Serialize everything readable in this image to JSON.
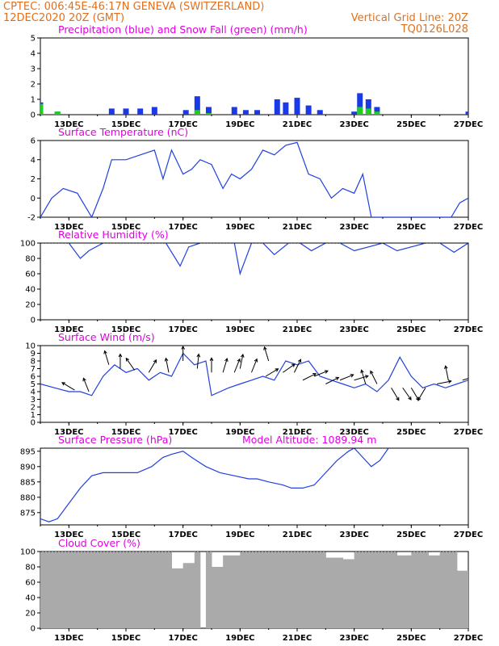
{
  "header": {
    "line1_left": "CPTEC:   006:45E-46:17N   GENEVA (SWITZERLAND)",
    "line2_left": "12DEC2020 20Z (GMT)",
    "line2_right": "Vertical Grid Line: 20Z",
    "line3_right": "TQ0126L028"
  },
  "colors": {
    "line": "#2040e0",
    "precip": "#1a3ae8",
    "snow": "#22cc22",
    "cloud": "#aaaaaa",
    "title": "#e000e0",
    "header": "#e0701f"
  },
  "x_ticks": [
    "13DEC",
    "15DEC",
    "17DEC",
    "19DEC",
    "21DEC",
    "23DEC",
    "25DEC",
    "27DEC"
  ],
  "chart_data": [
    {
      "type": "bar",
      "title": "Precipitation (blue) and Snow Fall (green) (mm/h)",
      "ylim": [
        0,
        5
      ],
      "yticks": [
        0,
        1,
        2,
        3,
        4,
        5
      ],
      "x_days": [
        12.0,
        12.6,
        13.2,
        13.5,
        14.5,
        15.0,
        15.5,
        16.0,
        16.5,
        17.1,
        17.5,
        17.9,
        18.4,
        18.8,
        19.2,
        19.6,
        20.0,
        20.3,
        20.6,
        21.0,
        21.4,
        21.8,
        22.2,
        22.6,
        23.0,
        23.2,
        23.5,
        23.8,
        24.2,
        26.0,
        26.6,
        27.0
      ],
      "series": [
        {
          "name": "Precipitation",
          "values": [
            0.8,
            0.2,
            0.0,
            0.0,
            0.4,
            0.4,
            0.4,
            0.5,
            0.0,
            0.3,
            1.2,
            0.5,
            0.0,
            0.5,
            0.3,
            0.3,
            0.0,
            1.0,
            0.8,
            1.1,
            0.6,
            0.3,
            0.0,
            0.0,
            0.2,
            1.4,
            1.0,
            0.5,
            0.0,
            0.0,
            0.0,
            0.2
          ]
        },
        {
          "name": "Snow Fall",
          "values": [
            0.7,
            0.2,
            0.0,
            0.0,
            0.0,
            0.0,
            0.0,
            0.0,
            0.0,
            0.0,
            0.3,
            0.1,
            0.0,
            0.0,
            0.0,
            0.0,
            0.0,
            0.0,
            0.0,
            0.0,
            0.0,
            0.0,
            0.0,
            0.0,
            0.0,
            0.5,
            0.4,
            0.2,
            0.0,
            0.0,
            0.0,
            0.0
          ]
        }
      ]
    },
    {
      "type": "line",
      "title": "Surface Temperature (nC)",
      "ylim": [
        -2,
        6
      ],
      "yticks": [
        -2,
        0,
        2,
        4,
        6
      ],
      "x_days": [
        12.0,
        12.4,
        12.8,
        13.3,
        13.8,
        14.2,
        14.5,
        15.0,
        15.5,
        16.0,
        16.3,
        16.6,
        17.0,
        17.3,
        17.6,
        18.0,
        18.4,
        18.7,
        19.0,
        19.4,
        19.8,
        20.2,
        20.6,
        21.0,
        21.4,
        21.8,
        22.2,
        22.6,
        23.0,
        23.3,
        23.6,
        26.4,
        26.7,
        27.0
      ],
      "series": [
        {
          "name": "Temperature",
          "values": [
            -2.0,
            0.0,
            1.0,
            0.5,
            -2.0,
            1.0,
            4.0,
            4.0,
            4.5,
            5.0,
            2.0,
            5.0,
            2.5,
            3.0,
            4.0,
            3.5,
            1.0,
            2.5,
            2.0,
            3.0,
            5.0,
            4.5,
            5.5,
            5.8,
            2.5,
            2.0,
            0.0,
            1.0,
            0.5,
            2.5,
            -2.0,
            -2.0,
            -0.5,
            0.0
          ]
        }
      ]
    },
    {
      "type": "line",
      "title": "Relative Humidity (%)",
      "ylim": [
        0,
        100
      ],
      "yticks": [
        0,
        20,
        40,
        60,
        80,
        100
      ],
      "x_days": [
        12.0,
        13.0,
        13.4,
        13.7,
        14.2,
        14.6,
        15.0,
        15.6,
        16.0,
        16.4,
        16.9,
        17.2,
        17.6,
        18.0,
        18.4,
        18.8,
        19.0,
        19.4,
        19.8,
        20.2,
        20.7,
        21.1,
        21.5,
        22.0,
        22.5,
        23.0,
        23.5,
        24.0,
        24.5,
        25.0,
        25.5,
        26.0,
        26.5,
        27.0
      ],
      "series": [
        {
          "name": "Relative Humidity",
          "values": [
            100,
            100,
            80,
            90,
            100,
            100,
            100,
            100,
            100,
            100,
            70,
            95,
            100,
            100,
            100,
            100,
            60,
            100,
            100,
            85,
            100,
            100,
            90,
            100,
            100,
            90,
            95,
            100,
            90,
            95,
            100,
            100,
            88,
            100
          ]
        }
      ]
    },
    {
      "type": "line",
      "title": "Surface Wind (m/s)",
      "ylim": [
        0,
        10
      ],
      "yticks": [
        0,
        1,
        2,
        3,
        4,
        5,
        6,
        7,
        8,
        9,
        10
      ],
      "x_days": [
        12.0,
        12.5,
        13.0,
        13.4,
        13.8,
        14.2,
        14.6,
        15.0,
        15.4,
        15.8,
        16.2,
        16.6,
        17.0,
        17.4,
        17.8,
        18.0,
        18.3,
        18.6,
        19.0,
        19.4,
        19.8,
        20.2,
        20.6,
        21.0,
        21.4,
        21.8,
        22.2,
        22.6,
        23.0,
        23.4,
        23.8,
        24.2,
        24.6,
        25.0,
        25.4,
        25.8,
        26.2,
        26.6,
        27.0
      ],
      "series": [
        {
          "name": "Wind speed",
          "values": [
            5.0,
            4.5,
            4.0,
            4.0,
            3.5,
            6.0,
            7.5,
            6.5,
            7.0,
            5.5,
            6.5,
            6.0,
            9.0,
            7.5,
            8.0,
            3.5,
            4.0,
            4.5,
            5.0,
            5.5,
            6.0,
            5.5,
            8.0,
            7.5,
            8.0,
            6.0,
            5.5,
            5.0,
            4.5,
            5.0,
            4.0,
            5.5,
            8.5,
            6.0,
            4.5,
            5.0,
            4.5,
            5.0,
            5.5
          ]
        }
      ],
      "arrows": [
        {
          "x": 13.2,
          "v": 4.2,
          "u_dir": [
            -1,
            0.6
          ]
        },
        {
          "x": 13.7,
          "v": 4.0,
          "u_dir": [
            -0.4,
            1
          ]
        },
        {
          "x": 14.4,
          "v": 7.5,
          "u_dir": [
            -0.3,
            1
          ]
        },
        {
          "x": 14.8,
          "v": 7.0,
          "u_dir": [
            0,
            1
          ]
        },
        {
          "x": 15.3,
          "v": 6.8,
          "u_dir": [
            -0.7,
            1
          ]
        },
        {
          "x": 15.8,
          "v": 6.5,
          "u_dir": [
            0.6,
            1
          ]
        },
        {
          "x": 16.5,
          "v": 6.5,
          "u_dir": [
            -0.2,
            1
          ]
        },
        {
          "x": 17.0,
          "v": 8.0,
          "u_dir": [
            0,
            1
          ]
        },
        {
          "x": 17.5,
          "v": 7.0,
          "u_dir": [
            0.1,
            1
          ]
        },
        {
          "x": 18.0,
          "v": 6.5,
          "u_dir": [
            0,
            1
          ]
        },
        {
          "x": 18.4,
          "v": 6.5,
          "u_dir": [
            0.3,
            1
          ]
        },
        {
          "x": 18.8,
          "v": 6.5,
          "u_dir": [
            0.4,
            1
          ]
        },
        {
          "x": 19.0,
          "v": 7.0,
          "u_dir": [
            0.2,
            1
          ]
        },
        {
          "x": 19.4,
          "v": 6.5,
          "u_dir": [
            0.4,
            1
          ]
        },
        {
          "x": 19.9,
          "v": 6.0,
          "u_dir": [
            1,
            0.6
          ]
        },
        {
          "x": 20.0,
          "v": 8.0,
          "u_dir": [
            -0.3,
            1
          ]
        },
        {
          "x": 20.5,
          "v": 6.5,
          "u_dir": [
            1,
            0.7
          ]
        },
        {
          "x": 20.9,
          "v": 6.5,
          "u_dir": [
            0.5,
            1
          ]
        },
        {
          "x": 21.2,
          "v": 5.5,
          "u_dir": [
            1,
            0.5
          ]
        },
        {
          "x": 21.6,
          "v": 6.0,
          "u_dir": [
            1,
            0.4
          ]
        },
        {
          "x": 22.0,
          "v": 5.0,
          "u_dir": [
            1,
            0.5
          ]
        },
        {
          "x": 22.5,
          "v": 5.5,
          "u_dir": [
            1,
            0.4
          ]
        },
        {
          "x": 23.0,
          "v": 5.5,
          "u_dir": [
            1,
            0.3
          ]
        },
        {
          "x": 23.4,
          "v": 5.0,
          "u_dir": [
            -0.3,
            1
          ]
        },
        {
          "x": 23.8,
          "v": 5.0,
          "u_dir": [
            -0.5,
            1
          ]
        },
        {
          "x": 24.3,
          "v": 4.5,
          "u_dir": [
            0.6,
            -1
          ]
        },
        {
          "x": 24.7,
          "v": 4.5,
          "u_dir": [
            0.7,
            -1
          ]
        },
        {
          "x": 25.0,
          "v": 4.5,
          "u_dir": [
            0.6,
            -1
          ]
        },
        {
          "x": 25.5,
          "v": 4.5,
          "u_dir": [
            -0.6,
            -1
          ]
        },
        {
          "x": 25.9,
          "v": 5.0,
          "u_dir": [
            1,
            0.2
          ]
        },
        {
          "x": 26.3,
          "v": 5.5,
          "u_dir": [
            -0.2,
            1
          ]
        },
        {
          "x": 26.8,
          "v": 5.5,
          "u_dir": [
            1,
            0.3
          ]
        }
      ]
    },
    {
      "type": "line",
      "title": "Surface Pressure (hPa)",
      "annotation": "Model Altitude: 1089.94 m",
      "ylim": [
        871,
        896
      ],
      "yticks": [
        875,
        880,
        885,
        890,
        895
      ],
      "x_days": [
        12.0,
        12.3,
        12.6,
        13.0,
        13.4,
        13.8,
        14.2,
        14.8,
        15.4,
        15.9,
        16.3,
        16.6,
        17.0,
        17.3,
        17.8,
        18.3,
        18.8,
        19.3,
        19.6,
        20.0,
        20.5,
        20.8,
        21.2,
        21.6,
        22.0,
        22.4,
        22.8,
        23.0,
        23.3,
        23.6,
        23.9,
        24.2
      ],
      "series": [
        {
          "name": "Pressure",
          "values": [
            873,
            872,
            873,
            878,
            883,
            887,
            888,
            888,
            888,
            890,
            893,
            894,
            895,
            893,
            890,
            888,
            887,
            886,
            886,
            885,
            884,
            883,
            883,
            884,
            888,
            892,
            895,
            896,
            893,
            890,
            892,
            896
          ]
        }
      ]
    },
    {
      "type": "bar",
      "title": "Cloud Cover (%)",
      "ylim": [
        0,
        100
      ],
      "yticks": [
        0,
        20,
        40,
        60,
        80,
        100
      ],
      "x_days": [
        12.0,
        13.0,
        14.0,
        15.0,
        16.0,
        16.6,
        17.0,
        17.4,
        17.6,
        17.8,
        18.0,
        18.4,
        19.0,
        20.0,
        21.0,
        22.0,
        22.6,
        23.0,
        24.0,
        24.5,
        25.0,
        25.6,
        26.0,
        26.6,
        27.0
      ],
      "series": [
        {
          "name": "Cloud Cover",
          "values": [
            100,
            100,
            100,
            100,
            100,
            78,
            85,
            100,
            0,
            100,
            80,
            95,
            100,
            100,
            100,
            92,
            90,
            100,
            100,
            95,
            100,
            95,
            100,
            75,
            100
          ]
        }
      ]
    }
  ]
}
